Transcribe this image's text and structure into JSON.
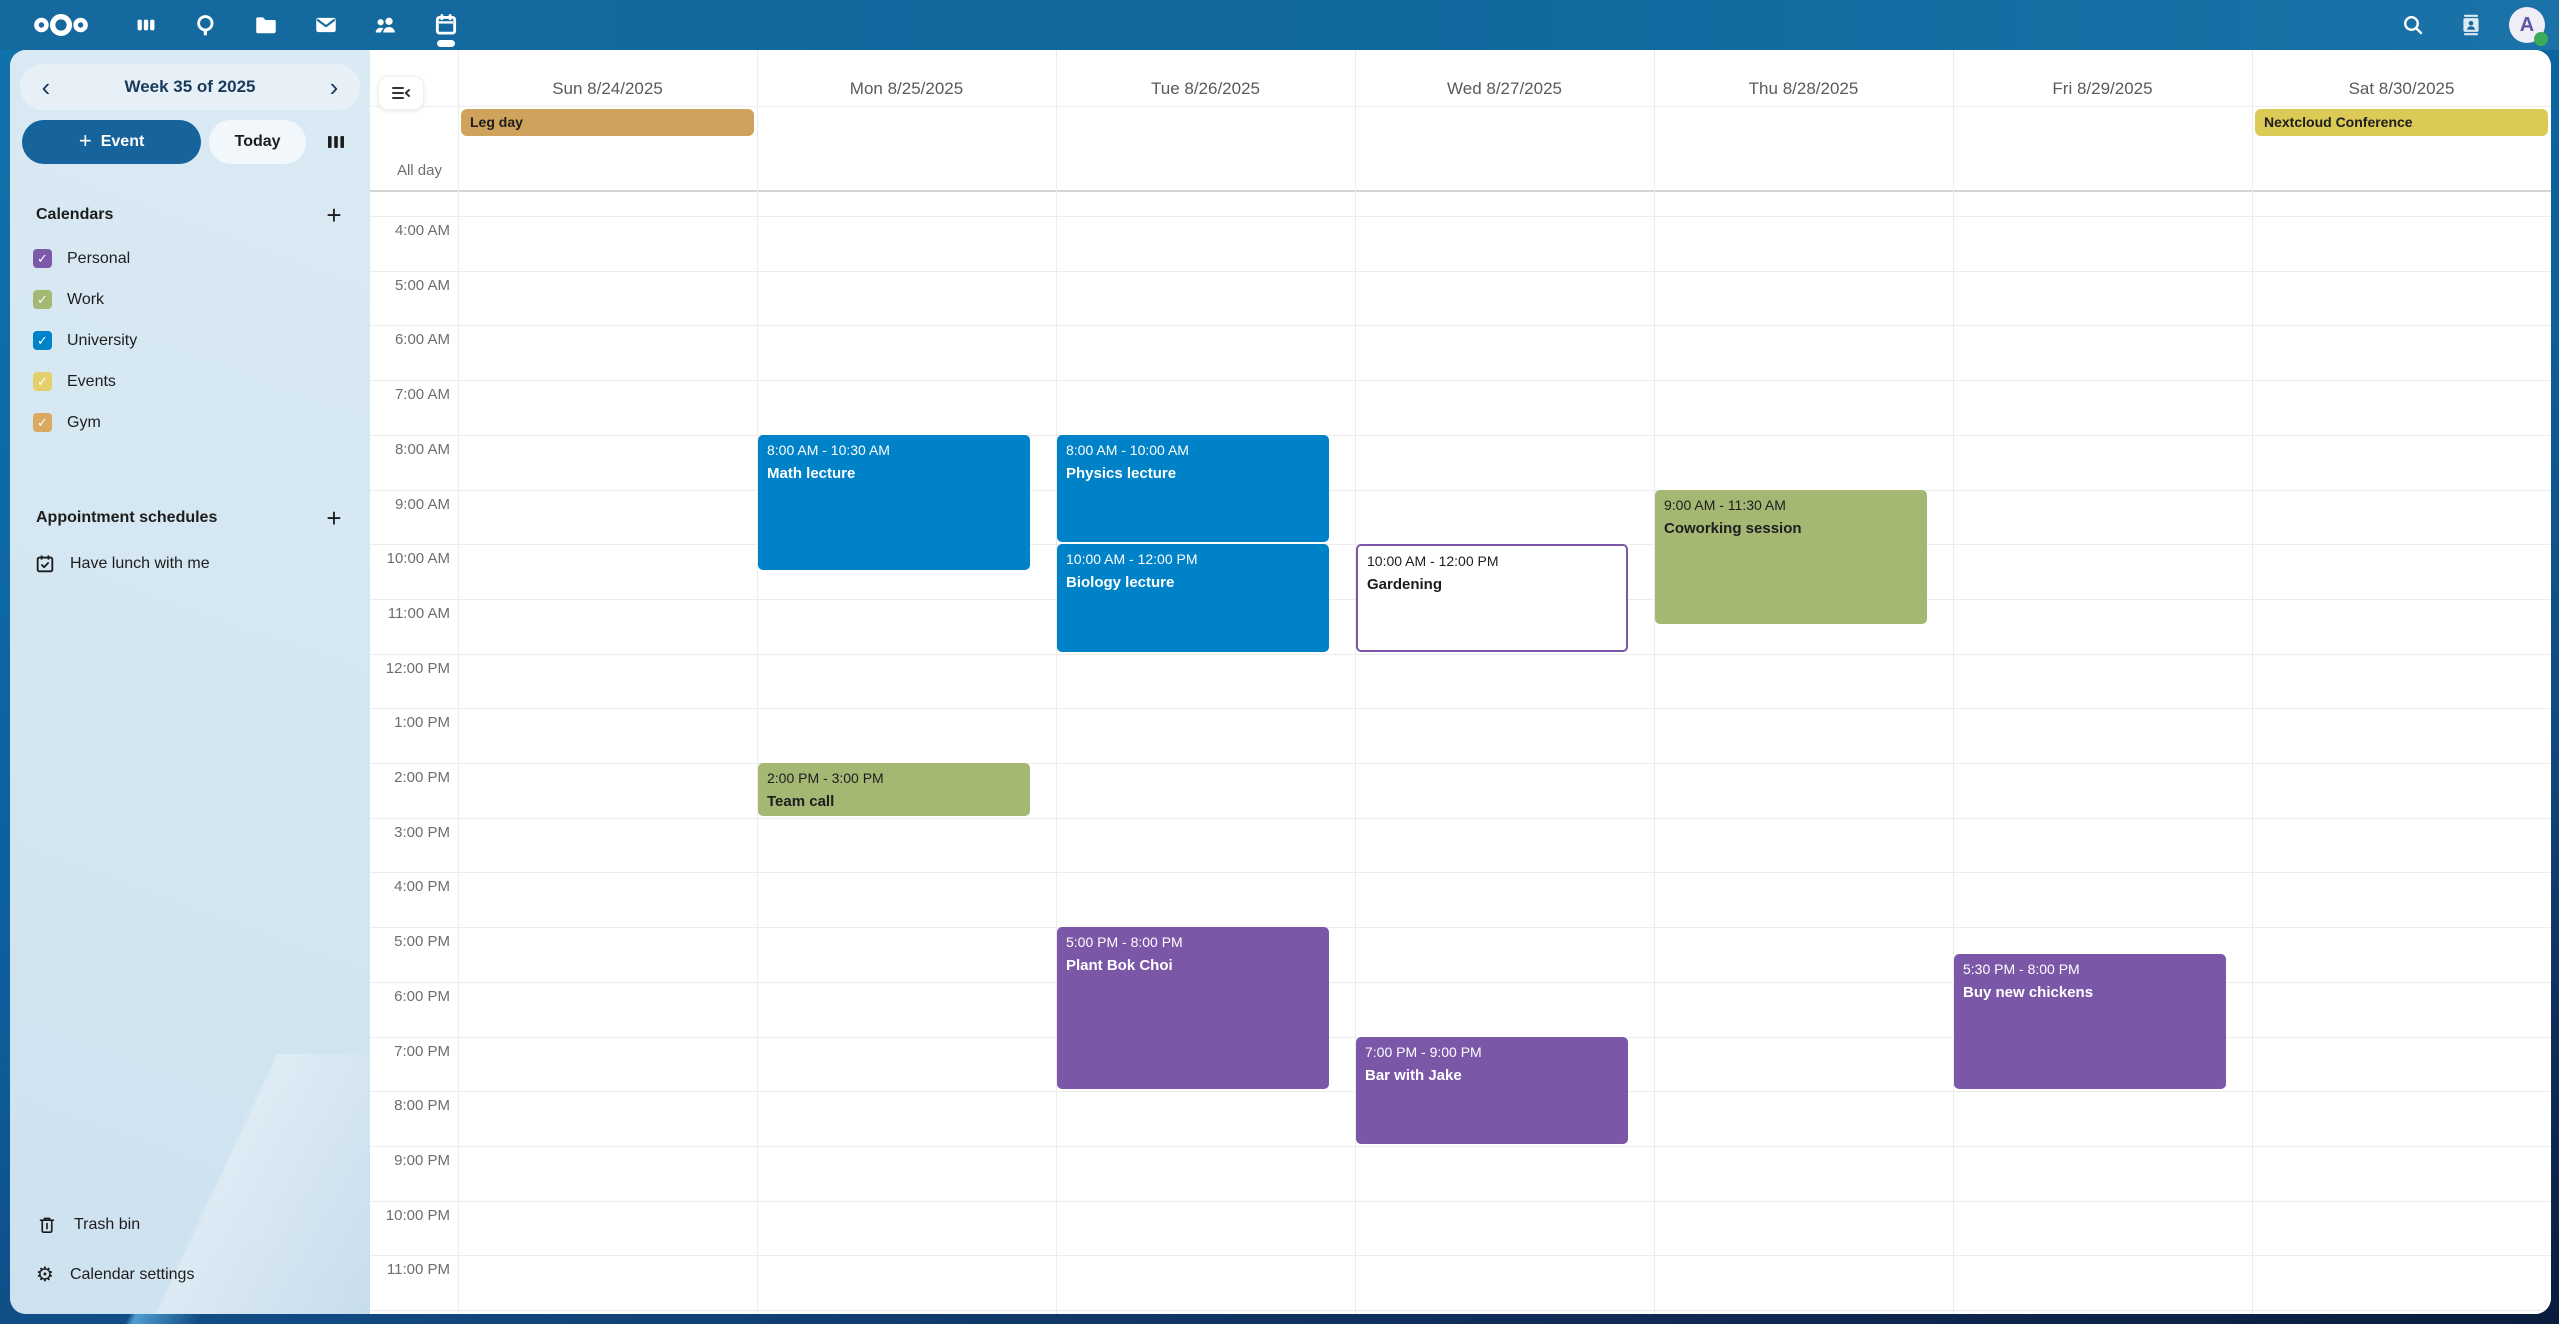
{
  "topbar": {
    "left_icons": [
      "nextcloud-logo",
      "dashboard",
      "search-app",
      "files",
      "mail",
      "contacts",
      "calendar"
    ],
    "active_app": "calendar",
    "right_icons": [
      "unified-search",
      "contacts-menu"
    ],
    "avatar": {
      "letter": "A",
      "status": "online",
      "status_color": "#3FA95B"
    }
  },
  "sidebar": {
    "week_nav": {
      "prev": "‹",
      "label": "Week 35 of 2025",
      "next": "›"
    },
    "buttons": {
      "new_event_plus": "+",
      "new_event": "Event",
      "today": "Today"
    },
    "sections": {
      "calendars": {
        "header": "Calendars",
        "add_label": "+",
        "items": [
          {
            "name": "Personal",
            "color": "#7C5AA8",
            "checked": true
          },
          {
            "name": "Work",
            "color": "#A4B873",
            "checked": true
          },
          {
            "name": "University",
            "color": "#0082C9",
            "checked": true
          },
          {
            "name": "Events",
            "color": "#E3D06B",
            "checked": true
          },
          {
            "name": "Gym",
            "color": "#DCA960",
            "checked": true
          }
        ]
      },
      "appointment_schedules": {
        "header": "Appointment schedules",
        "add_label": "+",
        "items": [
          {
            "name": "Have lunch with me"
          }
        ]
      }
    },
    "footer": {
      "trash": "Trash bin",
      "settings": "Calendar settings"
    }
  },
  "calendar_view": {
    "days": [
      "Sun 8/24/2025",
      "Mon 8/25/2025",
      "Tue 8/26/2025",
      "Wed 8/27/2025",
      "Thu 8/28/2025",
      "Fri 8/29/2025",
      "Sat 8/30/2025"
    ],
    "all_day_label": "All day",
    "time_labels": [
      "4:00 AM",
      "5:00 AM",
      "6:00 AM",
      "7:00 AM",
      "8:00 AM",
      "9:00 AM",
      "10:00 AM",
      "11:00 AM",
      "12:00 PM",
      "1:00 PM",
      "2:00 PM",
      "3:00 PM",
      "4:00 PM",
      "5:00 PM",
      "6:00 PM",
      "7:00 PM",
      "8:00 PM",
      "9:00 PM",
      "10:00 PM",
      "11:00 PM"
    ],
    "all_day_events": [
      {
        "title": "Leg day",
        "day": 0,
        "background": "#D0A35C",
        "text_color": "#1D1D1D"
      },
      {
        "title": "Nextcloud Conference",
        "day": 6,
        "background": "#DBCA55",
        "text_color": "#1D1D1D"
      }
    ],
    "events": [
      {
        "title": "Math lecture",
        "time": "8:00 AM - 10:30 AM",
        "day": 1,
        "start": 8,
        "end": 10.5,
        "background": "#0082C9",
        "text_color": "#FFFFFF"
      },
      {
        "title": "Physics lecture",
        "time": "8:00 AM - 10:00 AM",
        "day": 2,
        "start": 8,
        "end": 10,
        "background": "#0082C9",
        "text_color": "#FFFFFF"
      },
      {
        "title": "Biology lecture",
        "time": "10:00 AM - 12:00 PM",
        "day": 2,
        "start": 10,
        "end": 12,
        "background": "#0082C9",
        "text_color": "#FFFFFF"
      },
      {
        "title": "Gardening",
        "time": "10:00 AM - 12:00 PM",
        "day": 3,
        "start": 10,
        "end": 12,
        "background": "#FFFFFF",
        "text_color": "#1D1D1D",
        "border": "#7B57A8"
      },
      {
        "title": "Coworking session",
        "time": "9:00 AM - 11:30 AM",
        "day": 4,
        "start": 9,
        "end": 11.5,
        "background": "#A4B873",
        "text_color": "#1D1D1D"
      },
      {
        "title": "Team call",
        "time": "2:00 PM - 3:00 PM",
        "day": 1,
        "start": 14,
        "end": 15,
        "background": "#A4B873",
        "text_color": "#1D1D1D"
      },
      {
        "title": "Plant Bok Choi",
        "time": "5:00 PM - 8:00 PM",
        "day": 2,
        "start": 17,
        "end": 20,
        "background": "#7B57A8",
        "text_color": "#FFFFFF"
      },
      {
        "title": "Bar with Jake",
        "time": "7:00 PM - 9:00 PM",
        "day": 3,
        "start": 19,
        "end": 21,
        "background": "#7B57A8",
        "text_color": "#FFFFFF"
      },
      {
        "title": "Buy new chickens",
        "time": "5:30 PM - 8:00 PM",
        "day": 5,
        "start": 17.5,
        "end": 20,
        "background": "#7B57A8",
        "text_color": "#FFFFFF"
      }
    ]
  },
  "colors": {
    "header_bar": "#14699E",
    "accent": "#0082C9",
    "sidebar_bg": "#D5E7F2"
  }
}
